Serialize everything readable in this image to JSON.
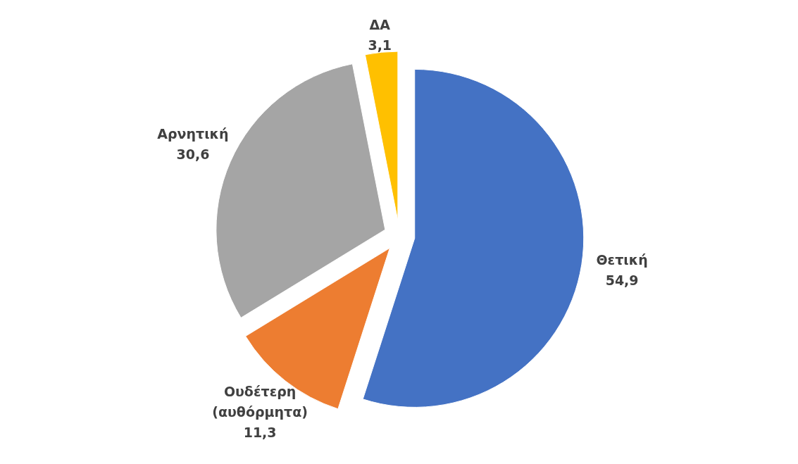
{
  "chart_data": {
    "type": "pie",
    "categories": [
      "Θετική",
      "Ουδέτερη (αυθόρμητα)",
      "Αρνητική",
      "ΔΑ"
    ],
    "values": [
      54.9,
      11.3,
      30.6,
      3.1
    ],
    "value_labels": [
      "54,9",
      "11,3",
      "30,6",
      "3,1"
    ],
    "colors": [
      "#4472c4",
      "#ed7d31",
      "#a5a5a5",
      "#ffc000"
    ]
  }
}
